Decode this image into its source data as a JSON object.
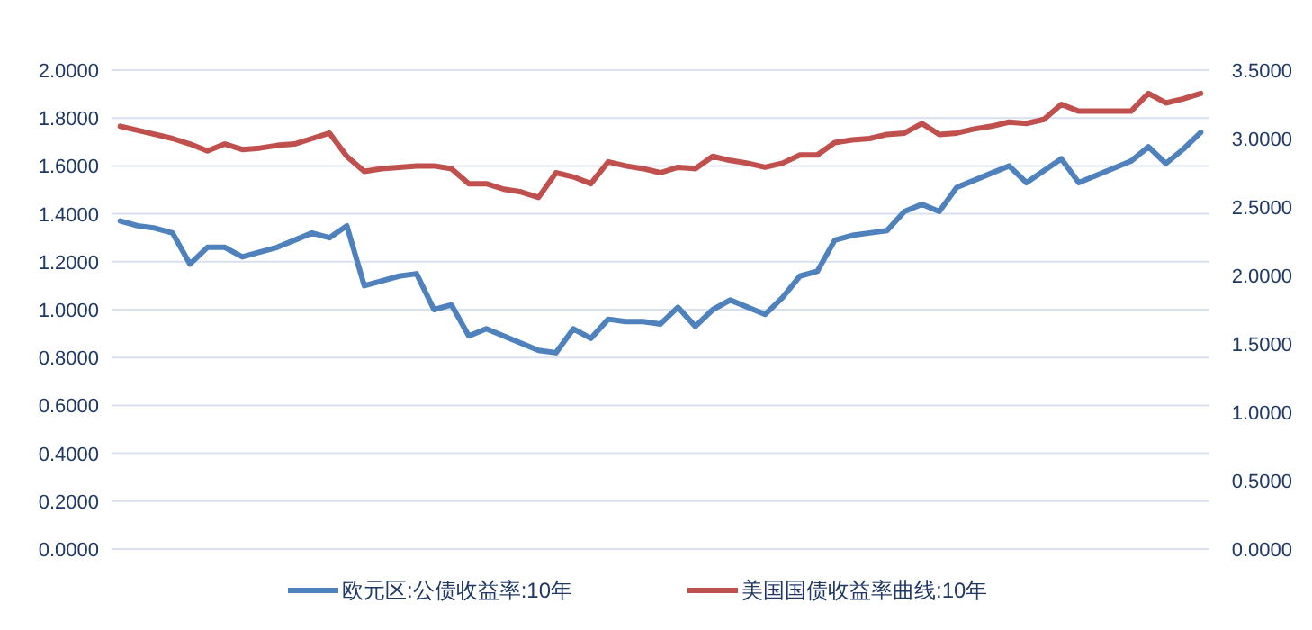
{
  "chart_data": {
    "type": "line",
    "categories": [
      null,
      null,
      null,
      null,
      null,
      null,
      null,
      null,
      null,
      null,
      null,
      null,
      null,
      null,
      null,
      null,
      null,
      null,
      null,
      null,
      null,
      null,
      null,
      null,
      null,
      null,
      null,
      null,
      null,
      null,
      null,
      null,
      null,
      null,
      null,
      null,
      null,
      null,
      null,
      null,
      null,
      null,
      null,
      null,
      null,
      null,
      null,
      null,
      null,
      null,
      null,
      null,
      null,
      null,
      null,
      null,
      null,
      null,
      null,
      null,
      null,
      null,
      null
    ],
    "series": [
      {
        "name": "欧元区:公债收益率:10年",
        "color": "#4f81bd",
        "axis": "y",
        "values": [
          1.37,
          1.35,
          1.34,
          1.32,
          1.19,
          1.26,
          1.26,
          1.22,
          1.24,
          1.26,
          1.29,
          1.32,
          1.3,
          1.35,
          1.1,
          1.12,
          1.14,
          1.15,
          1.0,
          1.02,
          0.89,
          0.92,
          0.89,
          0.86,
          0.83,
          0.82,
          0.92,
          0.88,
          0.96,
          0.95,
          0.95,
          0.94,
          1.01,
          0.93,
          1.0,
          1.04,
          1.01,
          0.98,
          1.05,
          1.14,
          1.16,
          1.29,
          1.31,
          1.32,
          1.33,
          1.41,
          1.44,
          1.41,
          1.51,
          1.54,
          1.57,
          1.6,
          1.53,
          1.58,
          1.63,
          1.53,
          1.56,
          1.59,
          1.62,
          1.68,
          1.61,
          1.67,
          1.74
        ]
      },
      {
        "name": "美国国债收益率曲线:10年",
        "color": "#c0504d",
        "axis": "y2",
        "values": [
          3.09,
          3.06,
          3.03,
          3.0,
          2.96,
          2.91,
          2.96,
          2.92,
          2.93,
          2.95,
          2.96,
          3.0,
          3.04,
          2.87,
          2.76,
          2.78,
          2.79,
          2.8,
          2.8,
          2.78,
          2.67,
          2.67,
          2.63,
          2.61,
          2.57,
          2.75,
          2.72,
          2.67,
          2.83,
          2.8,
          2.78,
          2.75,
          2.79,
          2.78,
          2.87,
          2.84,
          2.82,
          2.79,
          2.82,
          2.88,
          2.88,
          2.97,
          2.99,
          3.0,
          3.03,
          3.04,
          3.11,
          3.03,
          3.04,
          3.07,
          3.09,
          3.12,
          3.11,
          3.14,
          3.25,
          3.2,
          3.2,
          3.2,
          3.2,
          3.33,
          3.26,
          3.29,
          3.33
        ]
      }
    ],
    "ylim": [
      0,
      2
    ],
    "yticks": [
      {
        "value": 0,
        "label": "0.0000"
      },
      {
        "value": 0.2,
        "label": "0.2000"
      },
      {
        "value": 0.4,
        "label": "0.4000"
      },
      {
        "value": 0.6,
        "label": "0.6000"
      },
      {
        "value": 0.8,
        "label": "0.8000"
      },
      {
        "value": 1,
        "label": "1.0000"
      },
      {
        "value": 1.2,
        "label": "1.2000"
      },
      {
        "value": 1.4,
        "label": "1.4000"
      },
      {
        "value": 1.6,
        "label": "1.6000"
      },
      {
        "value": 1.8,
        "label": "1.8000"
      },
      {
        "value": 2,
        "label": "2.0000"
      }
    ],
    "y2lim": [
      0,
      3.5
    ],
    "y2ticks": [
      {
        "value": 0,
        "label": "0.0000"
      },
      {
        "value": 0.5,
        "label": "0.5000"
      },
      {
        "value": 1,
        "label": "1.0000"
      },
      {
        "value": 1.5,
        "label": "1.5000"
      },
      {
        "value": 2,
        "label": "2.0000"
      },
      {
        "value": 2.5,
        "label": "2.5000"
      },
      {
        "value": 3,
        "label": "3.0000"
      },
      {
        "value": 3.5,
        "label": "3.5000"
      }
    ],
    "grid": "y",
    "legend": "bottom"
  }
}
